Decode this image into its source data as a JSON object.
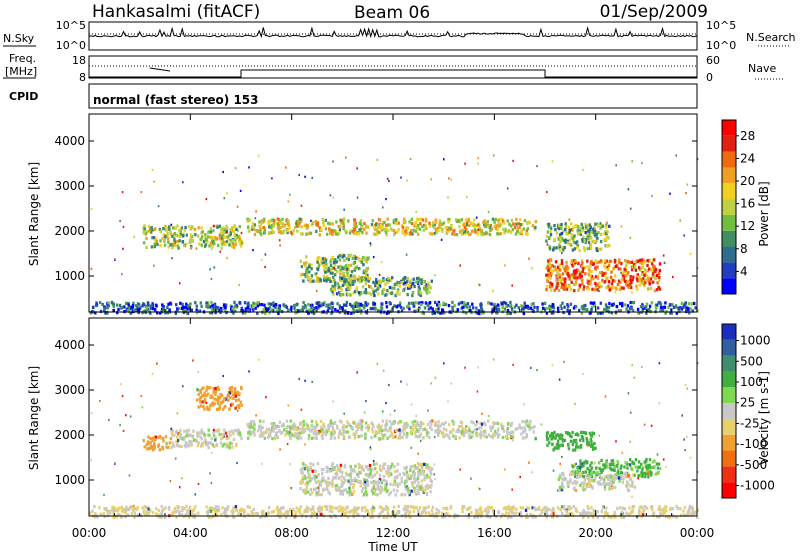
{
  "header": {
    "station": "Hankasalmi (fitACF)",
    "beam": "Beam 06",
    "date": "01/Sep/2009"
  },
  "aux_panels": {
    "nsky": {
      "label_left": "N.Sky",
      "ticks_left": [
        "10^5",
        "10^0"
      ],
      "ticks_right": [
        "10^5",
        "10^0"
      ],
      "label_right": "N.Search"
    },
    "freq": {
      "label_left_line1": "Freq.",
      "label_left_line2": "[MHz]",
      "ticks_left": [
        "18",
        "8"
      ],
      "ticks_right": [
        "60",
        "0"
      ],
      "label_right": "Nave"
    },
    "cpid": {
      "label": "CPID",
      "mode_text": "normal (fast stereo) 153"
    }
  },
  "chart_data": [
    {
      "type": "heatmap",
      "panel": "power",
      "ylabel": "Slant Range [km]",
      "ylim": [
        200,
        4600
      ],
      "yticks": [
        "1000",
        "2000",
        "3000",
        "4000"
      ],
      "xlim_hours": [
        0,
        24
      ],
      "colorbar": {
        "label": "Power [dB]",
        "ticks": [
          "4",
          "8",
          "12",
          "16",
          "20",
          "24",
          "28"
        ],
        "range": [
          0,
          30
        ],
        "colors": [
          "#0000ff",
          "#1f3fbf",
          "#2e6e8c",
          "#3f8f5f",
          "#6fbf3f",
          "#bfd040",
          "#f0d020",
          "#f0a020",
          "#f06a10",
          "#e02010",
          "#ff0000"
        ]
      },
      "echo_regions": [
        {
          "t0": 2.1,
          "t1": 6.0,
          "r0": 1650,
          "r1": 2150,
          "level": 14
        },
        {
          "t0": 6.2,
          "t1": 17.6,
          "r0": 1950,
          "r1": 2300,
          "level": 17
        },
        {
          "t0": 8.3,
          "t1": 11.0,
          "r0": 900,
          "r1": 1500,
          "level": 13
        },
        {
          "t0": 9.5,
          "t1": 13.5,
          "r0": 600,
          "r1": 1000,
          "level": 11
        },
        {
          "t0": 18.0,
          "t1": 20.5,
          "r0": 1600,
          "r1": 2200,
          "level": 12
        },
        {
          "t0": 18.0,
          "t1": 22.5,
          "r0": 700,
          "r1": 1400,
          "level": 22
        },
        {
          "t0": 0.0,
          "t1": 24.0,
          "r0": 200,
          "r1": 450,
          "level": 6
        }
      ]
    },
    {
      "type": "heatmap",
      "panel": "velocity",
      "ylabel": "Slant Range [km]",
      "ylim": [
        200,
        4600
      ],
      "yticks": [
        "1000",
        "2000",
        "3000",
        "4000"
      ],
      "xlim_hours": [
        0,
        24
      ],
      "xticks": [
        "00:00",
        "04:00",
        "08:00",
        "12:00",
        "16:00",
        "20:00",
        "00:00"
      ],
      "xlabel": "Time UT",
      "colorbar": {
        "label": "Velocity  [m s-1]",
        "ticks": [
          "1000",
          "500",
          "100",
          "25",
          "-25",
          "-100",
          "-500",
          "-1000"
        ],
        "colors": [
          "#1b2fbf",
          "#2f5fa0",
          "#3f8f6f",
          "#3fb03f",
          "#7fd84f",
          "#c8c8c8",
          "#e8d06f",
          "#f0a030",
          "#f07010",
          "#f03010",
          "#ff0000"
        ]
      },
      "echo_regions": [
        {
          "t0": 4.2,
          "t1": 6.0,
          "r0": 2600,
          "r1": 3100,
          "vel": -400
        },
        {
          "t0": 2.1,
          "t1": 3.2,
          "r0": 1700,
          "r1": 2000,
          "vel": -200
        },
        {
          "t0": 3.2,
          "t1": 6.0,
          "r0": 1750,
          "r1": 2150,
          "vel": 0
        },
        {
          "t0": 6.2,
          "t1": 17.6,
          "r0": 1950,
          "r1": 2350,
          "vel": 0
        },
        {
          "t0": 8.3,
          "t1": 13.5,
          "r0": 700,
          "r1": 1400,
          "vel": 0
        },
        {
          "t0": 18.0,
          "t1": 20.0,
          "r0": 1700,
          "r1": 2100,
          "vel": 300
        },
        {
          "t0": 19.0,
          "t1": 22.5,
          "r0": 1100,
          "r1": 1500,
          "vel": 120
        },
        {
          "t0": 18.5,
          "t1": 21.5,
          "r0": 800,
          "r1": 1200,
          "vel": 0
        },
        {
          "t0": 0.0,
          "t1": 24.0,
          "r0": 200,
          "r1": 450,
          "vel": -30
        }
      ]
    }
  ]
}
